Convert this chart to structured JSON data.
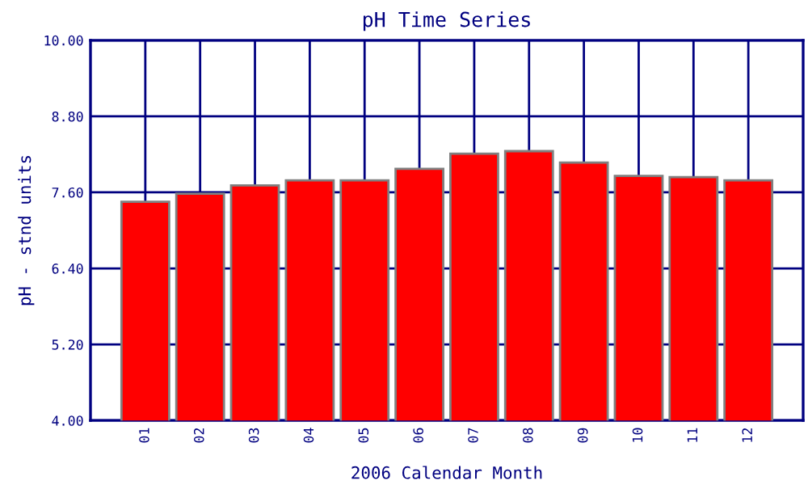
{
  "chart_data": {
    "type": "bar",
    "title": "pH Time Series",
    "xlabel": "2006 Calendar Month",
    "ylabel": "pH - stnd units",
    "categories": [
      "01",
      "02",
      "03",
      "04",
      "05",
      "06",
      "07",
      "08",
      "09",
      "10",
      "11",
      "12"
    ],
    "values": [
      7.45,
      7.58,
      7.71,
      7.79,
      7.79,
      7.97,
      8.21,
      8.25,
      8.07,
      7.86,
      7.84,
      7.79
    ],
    "color": "#ff0000",
    "ylim": [
      4,
      10
    ],
    "yticks": [
      {
        "value": 4,
        "label": "4.00"
      },
      {
        "value": 5.2,
        "label": "5.20"
      },
      {
        "value": 6.4,
        "label": "6.40"
      },
      {
        "value": 7.6,
        "label": "7.60"
      },
      {
        "value": 8.8,
        "label": "8.80"
      },
      {
        "value": 10,
        "label": "10.00"
      }
    ],
    "grid": true
  }
}
